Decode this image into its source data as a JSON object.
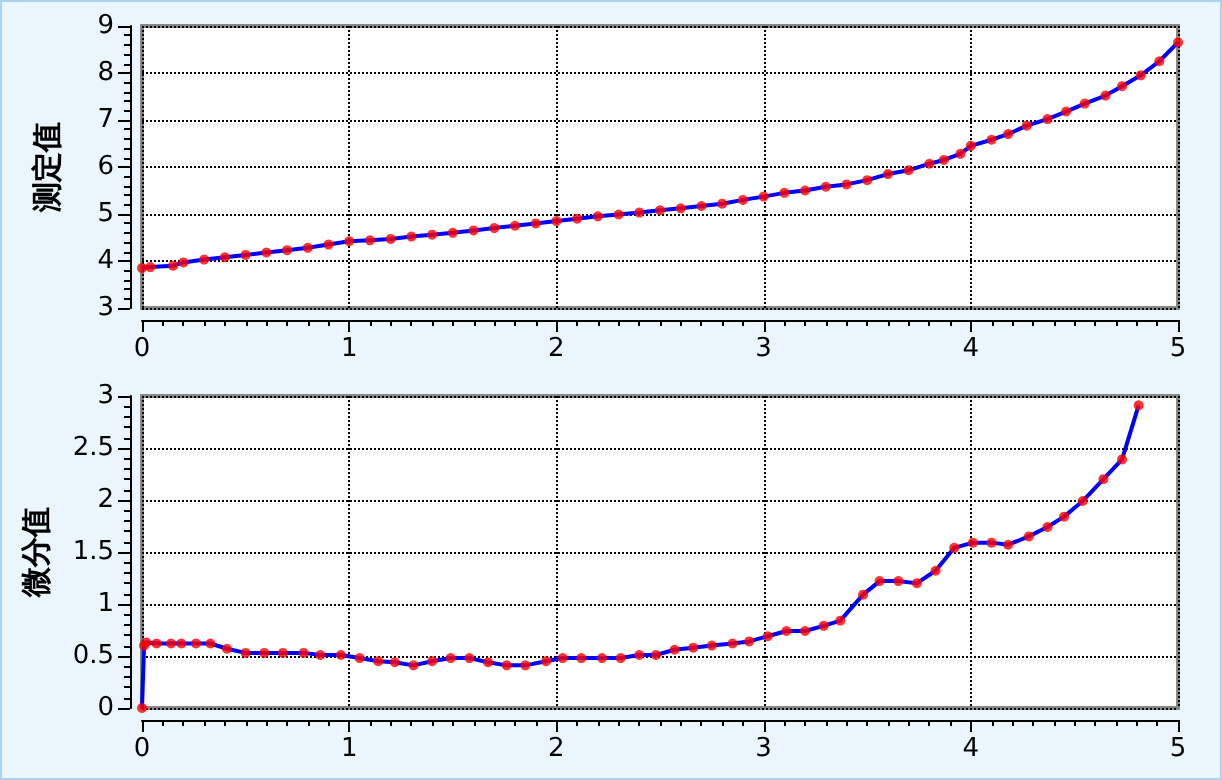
{
  "chart_data": [
    {
      "type": "line",
      "ylabel": "测定值",
      "xlim": [
        0,
        5
      ],
      "ylim": [
        3,
        9
      ],
      "xticks": [
        0,
        1,
        2,
        3,
        4,
        5
      ],
      "yticks": [
        3,
        4,
        5,
        6,
        7,
        8,
        9
      ],
      "grid": true,
      "x": [
        0,
        0.04,
        0.15,
        0.2,
        0.3,
        0.4,
        0.5,
        0.6,
        0.7,
        0.8,
        0.9,
        1.0,
        1.1,
        1.2,
        1.3,
        1.4,
        1.5,
        1.6,
        1.7,
        1.8,
        1.9,
        2.0,
        2.1,
        2.2,
        2.3,
        2.4,
        2.5,
        2.6,
        2.7,
        2.8,
        2.9,
        3.0,
        3.1,
        3.2,
        3.3,
        3.4,
        3.5,
        3.6,
        3.7,
        3.8,
        3.87,
        3.95,
        4.0,
        4.1,
        4.18,
        4.27,
        4.37,
        4.46,
        4.55,
        4.65,
        4.73,
        4.82,
        4.91,
        5.0
      ],
      "series": [
        {
          "type": "line",
          "color": "#0000ff",
          "marker": "none",
          "values": [
            3.85,
            3.87,
            3.9,
            3.97,
            4.03,
            4.08,
            4.13,
            4.18,
            4.23,
            4.28,
            4.35,
            4.42,
            4.44,
            4.47,
            4.52,
            4.56,
            4.6,
            4.65,
            4.7,
            4.75,
            4.8,
            4.85,
            4.9,
            4.95,
            4.99,
            5.03,
            5.08,
            5.12,
            5.17,
            5.22,
            5.3,
            5.37,
            5.45,
            5.5,
            5.58,
            5.63,
            5.72,
            5.85,
            5.93,
            6.07,
            6.15,
            6.28,
            6.45,
            6.58,
            6.7,
            6.88,
            7.02,
            7.18,
            7.35,
            7.52,
            7.72,
            7.95,
            8.25,
            8.65
          ]
        },
        {
          "type": "scatter",
          "color": "#ff0000",
          "marker": "circle",
          "values": [
            3.85,
            3.87,
            3.9,
            3.97,
            4.03,
            4.08,
            4.13,
            4.18,
            4.23,
            4.28,
            4.35,
            4.42,
            4.44,
            4.47,
            4.52,
            4.56,
            4.6,
            4.65,
            4.7,
            4.75,
            4.8,
            4.85,
            4.9,
            4.95,
            4.99,
            5.03,
            5.08,
            5.12,
            5.17,
            5.22,
            5.3,
            5.37,
            5.45,
            5.5,
            5.58,
            5.63,
            5.72,
            5.85,
            5.93,
            6.07,
            6.15,
            6.28,
            6.45,
            6.58,
            6.7,
            6.88,
            7.02,
            7.18,
            7.35,
            7.52,
            7.72,
            7.95,
            8.25,
            8.65
          ]
        }
      ]
    },
    {
      "type": "line",
      "ylabel": "微分值",
      "xlim": [
        0,
        5
      ],
      "ylim": [
        0,
        3
      ],
      "xticks": [
        0,
        1,
        2,
        3,
        4,
        5
      ],
      "yticks": [
        0,
        0.5,
        1,
        1.5,
        2,
        2.5,
        3
      ],
      "grid": true,
      "x": [
        0,
        0.01,
        0.02,
        0.07,
        0.14,
        0.19,
        0.26,
        0.33,
        0.41,
        0.5,
        0.59,
        0.68,
        0.78,
        0.86,
        0.96,
        1.05,
        1.14,
        1.22,
        1.31,
        1.4,
        1.49,
        1.58,
        1.67,
        1.76,
        1.85,
        1.95,
        2.03,
        2.12,
        2.22,
        2.31,
        2.4,
        2.48,
        2.57,
        2.66,
        2.75,
        2.85,
        2.93,
        3.02,
        3.11,
        3.2,
        3.29,
        3.37,
        3.48,
        3.56,
        3.65,
        3.74,
        3.83,
        3.92,
        4.01,
        4.1,
        4.18,
        4.28,
        4.37,
        4.45,
        4.54,
        4.64,
        4.73,
        4.81
      ],
      "series": [
        {
          "type": "line",
          "color": "#0000ff",
          "marker": "none",
          "values": [
            0,
            0.6,
            0.63,
            0.62,
            0.62,
            0.62,
            0.62,
            0.62,
            0.57,
            0.53,
            0.53,
            0.53,
            0.53,
            0.51,
            0.51,
            0.48,
            0.45,
            0.44,
            0.41,
            0.45,
            0.48,
            0.48,
            0.44,
            0.41,
            0.41,
            0.45,
            0.48,
            0.48,
            0.48,
            0.48,
            0.51,
            0.51,
            0.56,
            0.58,
            0.6,
            0.62,
            0.64,
            0.69,
            0.74,
            0.74,
            0.79,
            0.84,
            1.09,
            1.22,
            1.22,
            1.2,
            1.32,
            1.54,
            1.59,
            1.59,
            1.57,
            1.65,
            1.74,
            1.84,
            1.99,
            2.2,
            2.39,
            2.91
          ]
        },
        {
          "type": "scatter",
          "color": "#ff0000",
          "marker": "circle",
          "values": [
            0,
            0.6,
            0.63,
            0.62,
            0.62,
            0.62,
            0.62,
            0.62,
            0.57,
            0.53,
            0.53,
            0.53,
            0.53,
            0.51,
            0.51,
            0.48,
            0.45,
            0.44,
            0.41,
            0.45,
            0.48,
            0.48,
            0.44,
            0.41,
            0.41,
            0.45,
            0.48,
            0.48,
            0.48,
            0.48,
            0.51,
            0.51,
            0.56,
            0.58,
            0.6,
            0.62,
            0.64,
            0.69,
            0.74,
            0.74,
            0.79,
            0.84,
            1.09,
            1.22,
            1.22,
            1.2,
            1.32,
            1.54,
            1.59,
            1.59,
            1.57,
            1.65,
            1.74,
            1.84,
            1.99,
            2.2,
            2.39,
            2.91
          ]
        }
      ]
    }
  ]
}
